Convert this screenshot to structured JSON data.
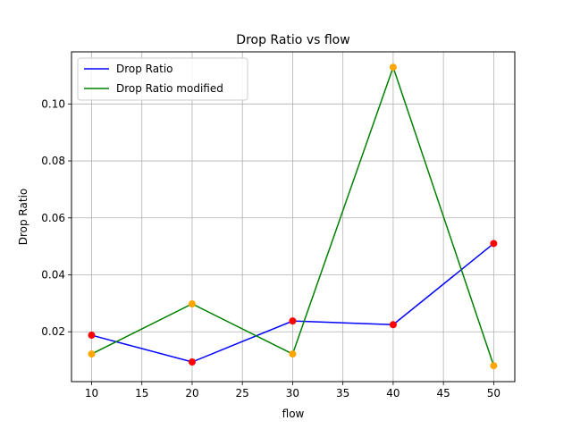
{
  "chart_data": {
    "type": "line",
    "title": "Drop Ratio vs flow",
    "xlabel": "flow",
    "ylabel": "Drop Ratio",
    "x": [
      10,
      20,
      30,
      40,
      50
    ],
    "xlim": [
      8,
      52.1
    ],
    "ylim": [
      0.0025,
      0.1183
    ],
    "xticks": [
      10,
      15,
      20,
      25,
      30,
      35,
      40,
      45,
      50
    ],
    "yticks": [
      0.02,
      0.04,
      0.06,
      0.08,
      0.1
    ],
    "ytick_labels": [
      "0.02",
      "0.04",
      "0.06",
      "0.08",
      "0.10"
    ],
    "grid": true,
    "legend_position": "top-left",
    "series": [
      {
        "name": "Drop Ratio",
        "values": [
          0.0188,
          0.0094,
          0.0238,
          0.0225,
          0.051
        ],
        "line_color": "#0000ff",
        "marker_color": "#ff0000"
      },
      {
        "name": "Drop Ratio modified",
        "values": [
          0.0122,
          0.0298,
          0.0122,
          0.1129,
          0.0081
        ],
        "line_color": "#008000",
        "marker_color": "#ffa500"
      }
    ]
  }
}
